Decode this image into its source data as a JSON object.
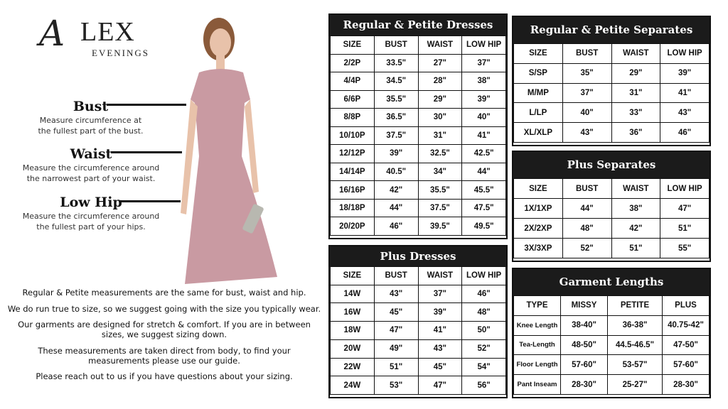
{
  "logo": {
    "text": "ALEX",
    "sub": "EVENINGS"
  },
  "measurements": [
    {
      "label": "Bust",
      "desc": [
        "Measure circumference at",
        "the fullest part of the bust."
      ]
    },
    {
      "label": "Waist",
      "desc": [
        "Measure the circumference around",
        "the narrowest part of your waist."
      ]
    },
    {
      "label": "Low Hip",
      "desc": [
        "Measure the circumference around",
        "the fullest part of your hips."
      ]
    }
  ],
  "notes": [
    "Regular & Petite measurements are the same for bust, waist and hip.",
    "We do run true to size, so we suggest going with the size you typically wear.",
    "Our garments are designed for stretch & comfort. If you are in between sizes, we suggest sizing down.",
    "These measurements are taken direct from body, to find your measurements please use our guide.",
    "Please reach out to us if you have questions about your sizing."
  ],
  "colors": {
    "header_bg": "#1b1b1b",
    "dress": "#c99aa2"
  },
  "tables": [
    {
      "id": "regular-petite-dresses",
      "title": "Regular & Petite Dresses",
      "columns": [
        "SIZE",
        "BUST",
        "WAIST",
        "LOW HIP"
      ],
      "rows": [
        [
          "2/2P",
          "33.5\"",
          "27\"",
          "37\""
        ],
        [
          "4/4P",
          "34.5\"",
          "28\"",
          "38\""
        ],
        [
          "6/6P",
          "35.5\"",
          "29\"",
          "39\""
        ],
        [
          "8/8P",
          "36.5\"",
          "30\"",
          "40\""
        ],
        [
          "10/10P",
          "37.5\"",
          "31\"",
          "41\""
        ],
        [
          "12/12P",
          "39\"",
          "32.5\"",
          "42.5\""
        ],
        [
          "14/14P",
          "40.5\"",
          "34\"",
          "44\""
        ],
        [
          "16/16P",
          "42\"",
          "35.5\"",
          "45.5\""
        ],
        [
          "18/18P",
          "44\"",
          "37.5\"",
          "47.5\""
        ],
        [
          "20/20P",
          "46\"",
          "39.5\"",
          "49.5\""
        ]
      ]
    },
    {
      "id": "plus-dresses",
      "title": "Plus Dresses",
      "columns": [
        "SIZE",
        "BUST",
        "WAIST",
        "LOW HIP"
      ],
      "rows": [
        [
          "14W",
          "43\"",
          "37\"",
          "46\""
        ],
        [
          "16W",
          "45\"",
          "39\"",
          "48\""
        ],
        [
          "18W",
          "47\"",
          "41\"",
          "50\""
        ],
        [
          "20W",
          "49\"",
          "43\"",
          "52\""
        ],
        [
          "22W",
          "51\"",
          "45\"",
          "54\""
        ],
        [
          "24W",
          "53\"",
          "47\"",
          "56\""
        ]
      ]
    },
    {
      "id": "regular-petite-separates",
      "title": "Regular & Petite Separates",
      "columns": [
        "SIZE",
        "BUST",
        "WAIST",
        "LOW HIP"
      ],
      "rows": [
        [
          "S/SP",
          "35\"",
          "29\"",
          "39\""
        ],
        [
          "M/MP",
          "37\"",
          "31\"",
          "41\""
        ],
        [
          "L/LP",
          "40\"",
          "33\"",
          "43\""
        ],
        [
          "XL/XLP",
          "43\"",
          "36\"",
          "46\""
        ]
      ]
    },
    {
      "id": "plus-separates",
      "title": "Plus Separates",
      "columns": [
        "SIZE",
        "BUST",
        "WAIST",
        "LOW HIP"
      ],
      "rows": [
        [
          "1X/1XP",
          "44\"",
          "38\"",
          "47\""
        ],
        [
          "2X/2XP",
          "48\"",
          "42\"",
          "51\""
        ],
        [
          "3X/3XP",
          "52\"",
          "51\"",
          "55\""
        ]
      ]
    },
    {
      "id": "garment-lengths",
      "title": "Garment Lengths",
      "columns": [
        "TYPE",
        "MISSY",
        "PETITE",
        "PLUS"
      ],
      "rows": [
        [
          "Knee Length",
          "38-40\"",
          "36-38\"",
          "40.75-42\""
        ],
        [
          "Tea-Length",
          "48-50\"",
          "44.5-46.5\"",
          "47-50\""
        ],
        [
          "Floor Length",
          "57-60\"",
          "53-57\"",
          "57-60\""
        ],
        [
          "Pant Inseam",
          "28-30\"",
          "25-27\"",
          "28-30\""
        ]
      ]
    }
  ]
}
